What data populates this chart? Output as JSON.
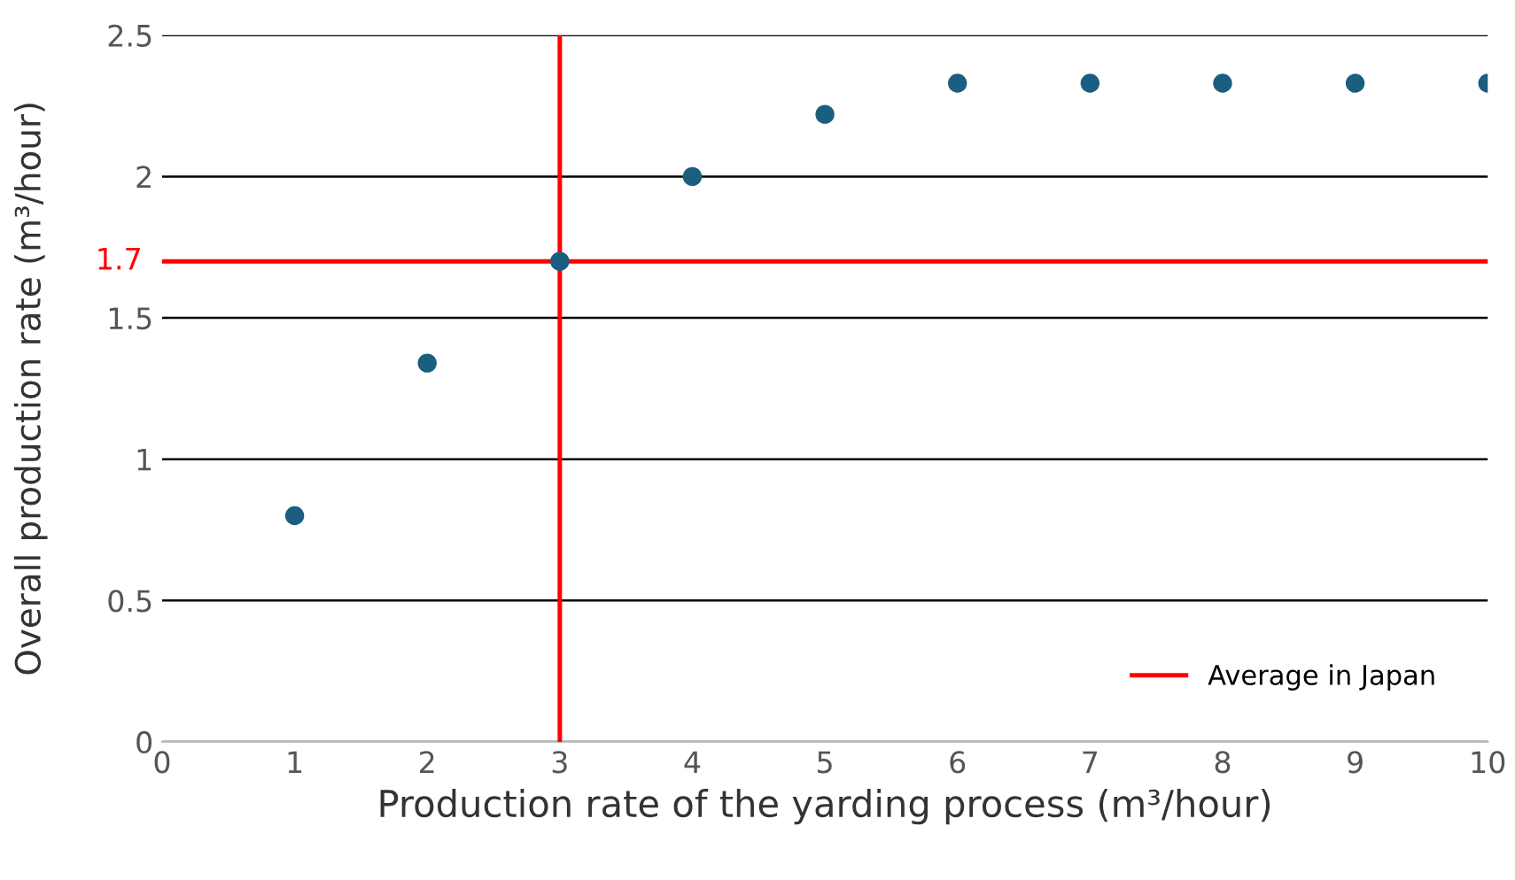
{
  "chart_data": {
    "type": "scatter",
    "xlabel": "Production rate of the yarding process (m³/hour)",
    "ylabel": "Overall production rate (m³/hour)",
    "x": [
      1,
      2,
      3,
      4,
      5,
      6,
      7,
      8,
      9,
      10
    ],
    "series": [
      {
        "color": "#1b5e80",
        "values": [
          0.8,
          1.34,
          1.7,
          2.0,
          2.22,
          2.33,
          2.33,
          2.33,
          2.33,
          2.33
        ]
      }
    ],
    "xlim": [
      0,
      10
    ],
    "xticks": [
      0,
      1,
      2,
      3,
      4,
      5,
      6,
      7,
      8,
      9,
      10
    ],
    "ylim": [
      0,
      2.5
    ],
    "yticks": [
      0,
      0.5,
      1,
      1.5,
      2,
      2.5
    ],
    "ref_lines": [
      {
        "axis": "y",
        "value": 1.7,
        "label": "Average in Japan",
        "color": "#ff0000"
      },
      {
        "axis": "x",
        "value": 3,
        "color": "#ff0000"
      }
    ],
    "annotations": [
      {
        "text": "1.7",
        "x": 0,
        "y": 1.7
      }
    ],
    "grid": "y",
    "legend": "bottom right",
    "marker": "circle"
  }
}
